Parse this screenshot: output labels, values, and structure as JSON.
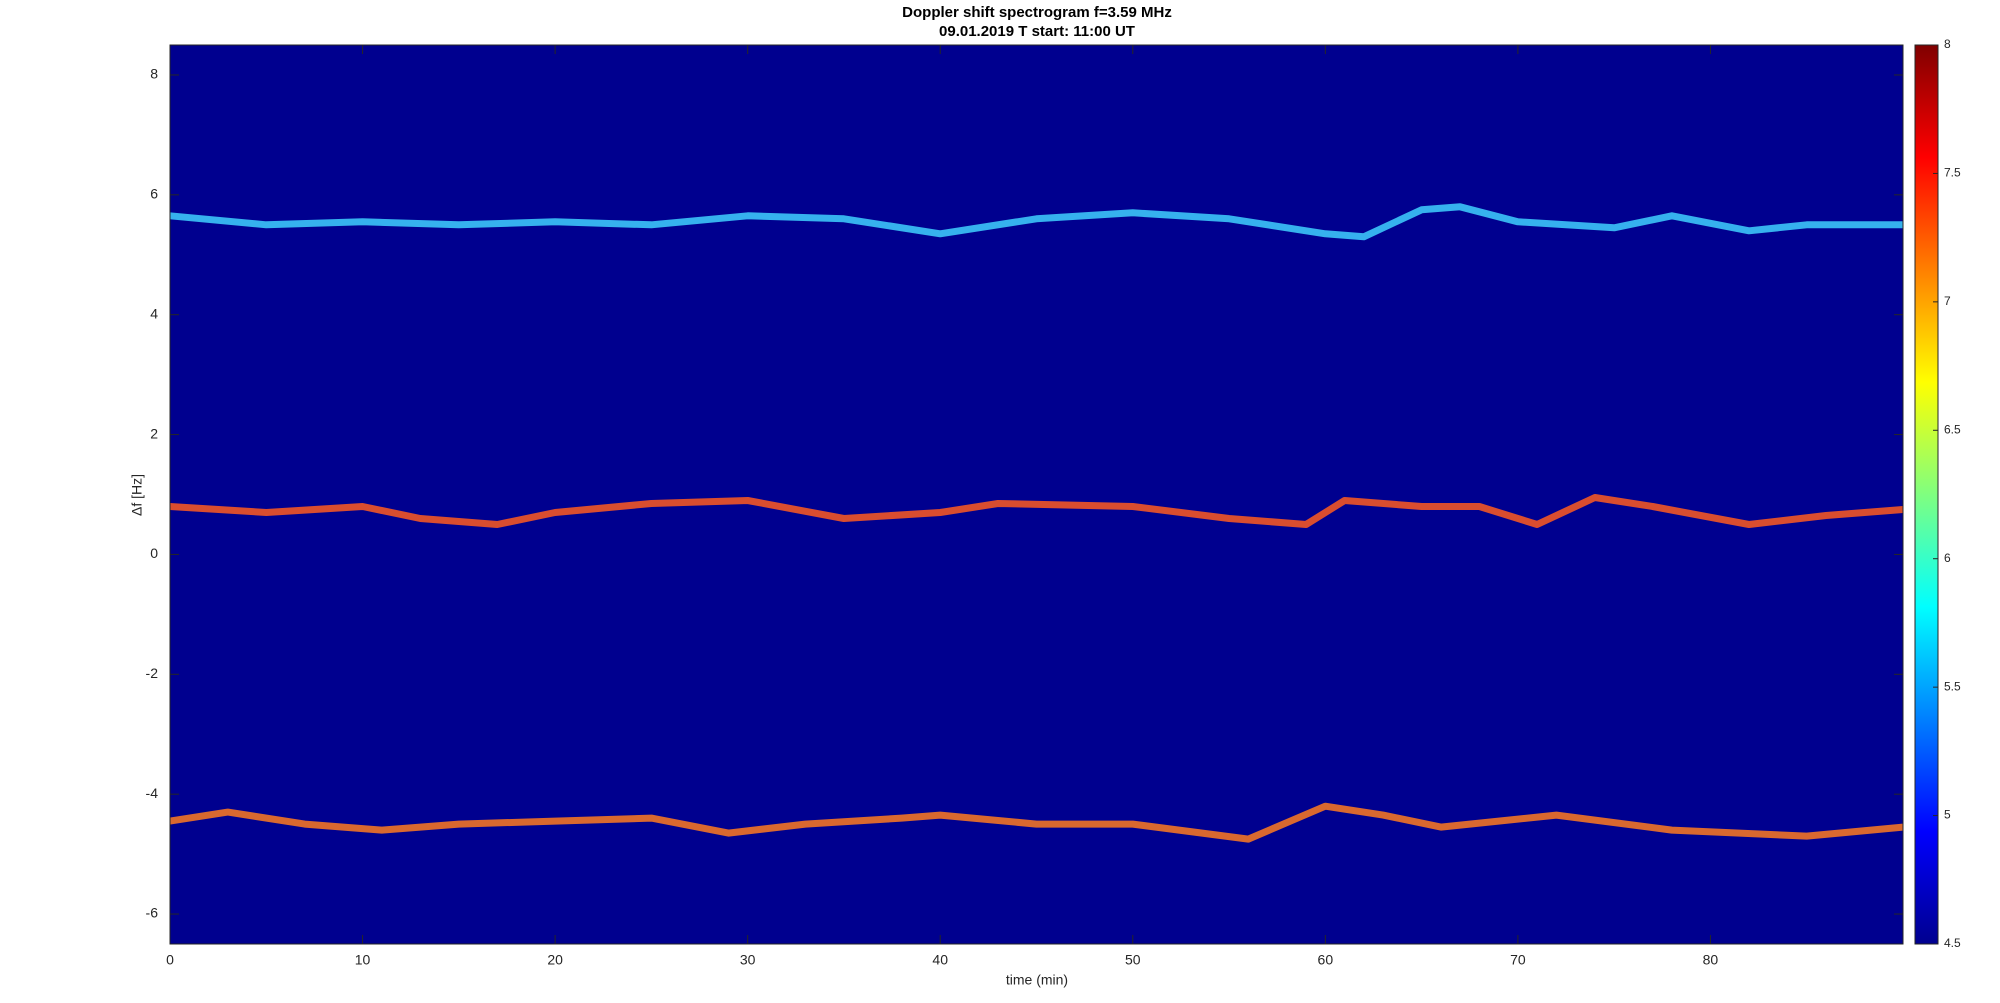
{
  "chart_data": {
    "type": "spectrogram",
    "title": "Doppler shift spectrogram f=3.59 MHz",
    "subtitle": "09.01.2019   T start: 11:00 UT",
    "x_label": "time (min)",
    "y_label": "Δf [Hz]",
    "xlim": [
      0,
      90
    ],
    "xticks": [
      0,
      10,
      20,
      30,
      40,
      50,
      60,
      70,
      80
    ],
    "ylim": [
      -6.5,
      8.5
    ],
    "yticks": [
      -6,
      -4,
      -2,
      0,
      2,
      4,
      6,
      8
    ],
    "clim": [
      4.5,
      8
    ],
    "cticks": [
      4.5,
      5,
      5.5,
      6,
      6.5,
      7,
      7.5,
      8
    ],
    "colormap": "jet",
    "background_color": "#00008f",
    "series": [
      {
        "color": "#3fd0ff",
        "x": [
          0,
          5,
          10,
          15,
          20,
          25,
          30,
          35,
          40,
          45,
          50,
          55,
          60,
          62,
          65,
          67,
          70,
          75,
          78,
          82,
          85,
          90
        ],
        "values": [
          5.65,
          5.5,
          5.55,
          5.5,
          5.55,
          5.5,
          5.65,
          5.6,
          5.35,
          5.6,
          5.7,
          5.6,
          5.35,
          5.3,
          5.75,
          5.8,
          5.55,
          5.45,
          5.65,
          5.4,
          5.5,
          5.5
        ]
      },
      {
        "color": "#ff5a1f",
        "x": [
          0,
          5,
          10,
          13,
          17,
          20,
          25,
          30,
          35,
          40,
          43,
          50,
          55,
          59,
          61,
          65,
          68,
          71,
          74,
          77,
          82,
          86,
          90
        ],
        "values": [
          0.8,
          0.7,
          0.8,
          0.6,
          0.5,
          0.7,
          0.85,
          0.9,
          0.6,
          0.7,
          0.85,
          0.8,
          0.6,
          0.5,
          0.9,
          0.8,
          0.8,
          0.5,
          0.95,
          0.8,
          0.5,
          0.65,
          0.75
        ]
      },
      {
        "color": "#ff7a1f",
        "x": [
          0,
          3,
          7,
          11,
          15,
          20,
          25,
          29,
          33,
          38,
          40,
          45,
          50,
          56,
          60,
          63,
          66,
          72,
          78,
          85,
          90
        ],
        "values": [
          -4.45,
          -4.3,
          -4.5,
          -4.6,
          -4.5,
          -4.45,
          -4.4,
          -4.65,
          -4.5,
          -4.4,
          -4.35,
          -4.5,
          -4.5,
          -4.75,
          -4.2,
          -4.35,
          -4.55,
          -4.35,
          -4.6,
          -4.7,
          -4.55
        ]
      }
    ]
  }
}
